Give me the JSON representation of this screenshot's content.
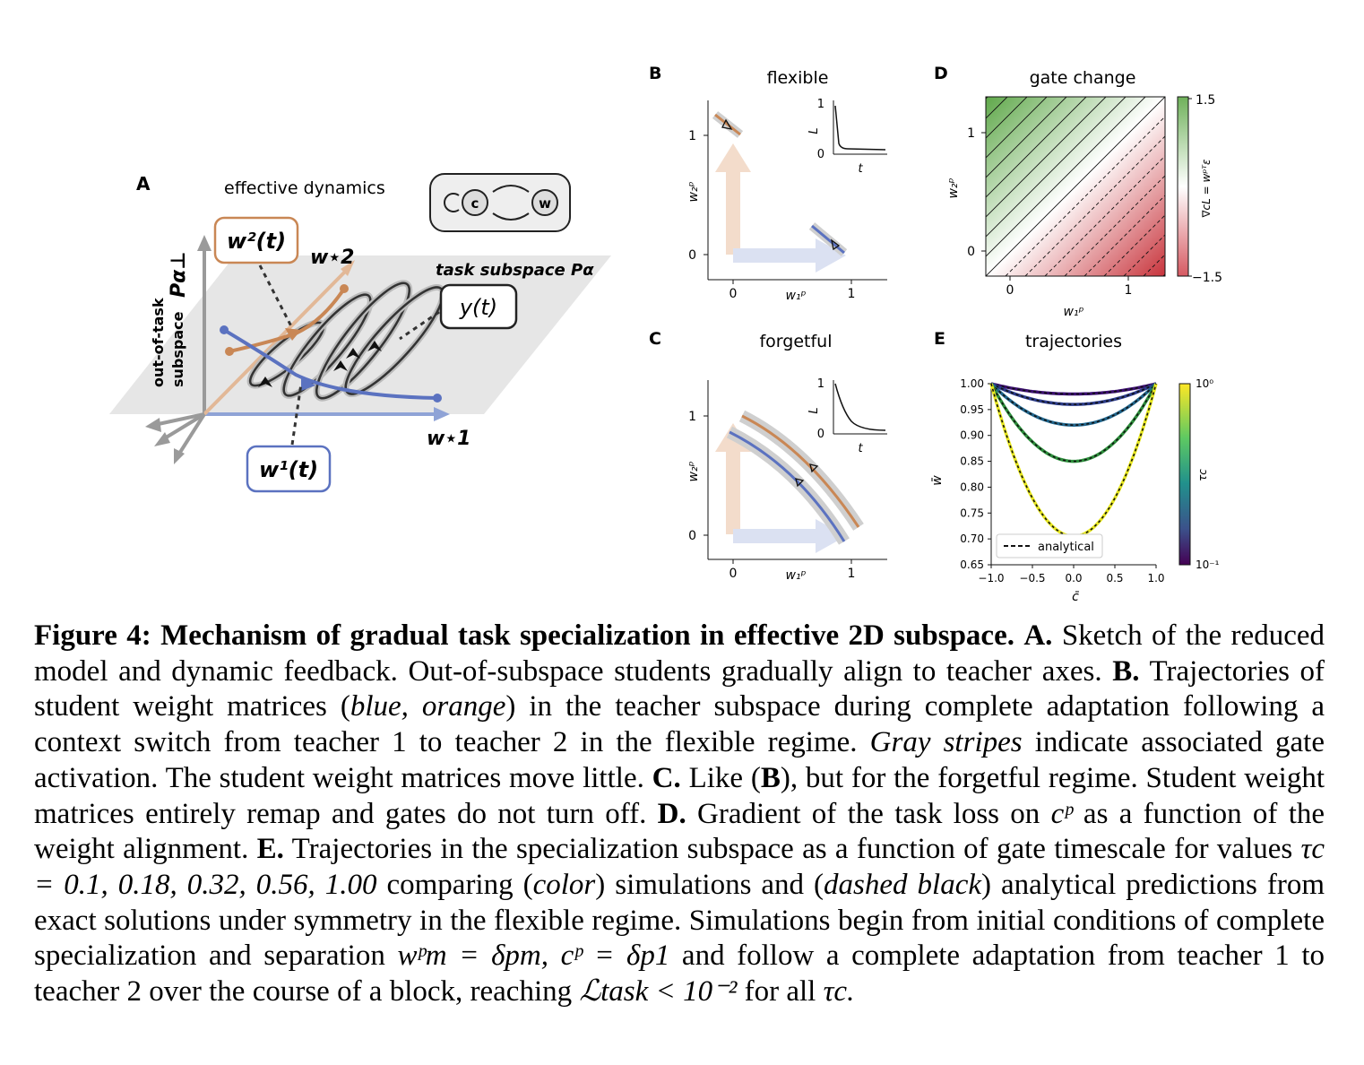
{
  "panel_a": {
    "letter": "A",
    "title": "effective dynamics",
    "w2_label": "w²(t)",
    "w1_label": "w¹(t)",
    "wstar2": "w⋆2",
    "wstar1": "w⋆1",
    "y_label": "y(t)",
    "task_subspace": "task subspace Pα",
    "axis_label_line1": "out-of-task",
    "axis_label_line2": "subspace",
    "axis_label_sym": "Pα⊥",
    "c_node": "c",
    "w_node": "w"
  },
  "panel_b": {
    "letter": "B",
    "title": "flexible"
  },
  "panel_c": {
    "letter": "C",
    "title": "forgetful"
  },
  "panel_d": {
    "letter": "D",
    "title": "gate change",
    "colorbar_label": "∇cL = wᵖᵀε",
    "cb_max": "1.5",
    "cb_min": "−1.5"
  },
  "panel_e": {
    "letter": "E",
    "title": "trajectories",
    "legend": "analytical",
    "ylabel": "w̄",
    "xlabel": "c̄",
    "cb_label": "τc"
  },
  "axes": {
    "x": "w₁ᵖ",
    "y": "w₂ᵖ",
    "inset_y": "L",
    "inset_x": "t",
    "t0": "0",
    "t1": "1"
  },
  "chart_data": [
    {
      "type": "line",
      "title": "trajectories",
      "xlabel": "c̄",
      "ylabel": "w̄",
      "xlim": [
        -1.0,
        1.0
      ],
      "ylim": [
        0.65,
        1.0
      ],
      "x_ticks": [
        "−1.0",
        "−0.5",
        "0.0",
        "0.5",
        "1.0"
      ],
      "y_ticks": [
        "1.00",
        "0.95",
        "0.90",
        "0.85",
        "0.80",
        "0.75",
        "0.70",
        "0.65"
      ],
      "colorbar": {
        "label": "τc",
        "ticks": [
          "10⁰",
          "10⁻¹"
        ]
      },
      "legend": [
        "analytical"
      ],
      "series": [
        {
          "name": "τc = 0.1",
          "x": [
            -1.0,
            0.0,
            1.0
          ],
          "min": 0.98,
          "color": "#3b0f70"
        },
        {
          "name": "τc = 0.18",
          "x": [
            -1.0,
            0.0,
            1.0
          ],
          "min": 0.96,
          "color": "#2c3c8b"
        },
        {
          "name": "τc = 0.32",
          "x": [
            -1.0,
            0.0,
            1.0
          ],
          "min": 0.92,
          "color": "#21668d"
        },
        {
          "name": "τc = 0.56",
          "x": [
            -1.0,
            0.0,
            1.0
          ],
          "min": 0.85,
          "color": "#2d8f3c"
        },
        {
          "name": "τc = 1.00",
          "x": [
            -1.0,
            0.0,
            1.0
          ],
          "min": 0.705,
          "color": "#e8e81f"
        }
      ]
    },
    {
      "type": "heatmap",
      "title": "gate change",
      "xlim": [
        -0.2,
        1.35
      ],
      "ylim": [
        -0.2,
        1.35
      ],
      "x_ticks": [
        "0",
        "1"
      ],
      "y_ticks": [
        "0",
        "1"
      ],
      "colorbar": {
        "min": -1.5,
        "max": 1.5
      }
    }
  ],
  "caption": {
    "fig_label": "Figure 4: Mechanism of gradual task specialization in effective 2D subspace.",
    "a_lbl": "A.",
    "a_txt": "Sketch of the reduced model and dynamic feedback. Out-of-subspace students gradually align to teacher axes.",
    "b_lbl": "B.",
    "b_txt1": "Trajectories of student weight matrices (",
    "b_it1": "blue, orange",
    "b_txt2": ") in the teacher subspace during complete adaptation following a context switch from teacher 1 to teacher 2 in the flexible regime.",
    "b_it2": "Gray stripes",
    "b_txt3": "indicate associated gate activation. The student weight matrices move little.",
    "c_lbl": "C.",
    "c_txt1": "Like (",
    "c_ref": "B",
    "c_txt2": "), but for the forgetful regime. Student weight matrices entirely remap and gates do not turn off.",
    "d_lbl": "D.",
    "d_txt1": "Gradient of the task loss on",
    "d_sym": "cᵖ",
    "d_txt2": "as a function of the weight alignment.",
    "e_lbl": "E.",
    "e_txt1": "Trajectories in the specialization subspace as a function of gate timescale for values",
    "e_sym": "τc = 0.1, 0.18, 0.32, 0.56, 1.00",
    "e_txt2": "comparing (",
    "e_it1": "color",
    "e_txt3": ") simulations and (",
    "e_it2": "dashed black",
    "e_txt4": ") analytical predictions from exact solutions under symmetry in the flexible regime. Simulations begin from initial conditions of complete specialization and separation",
    "e_sym2": "wᵖm = δpm, cᵖ = δp1",
    "e_txt5": "and follow a complete adaptation from teacher 1 to teacher 2 over the course of a block, reaching",
    "e_sym3": "ℒtask < 10⁻²",
    "e_txt6": "for all",
    "e_sym4": "τc."
  }
}
